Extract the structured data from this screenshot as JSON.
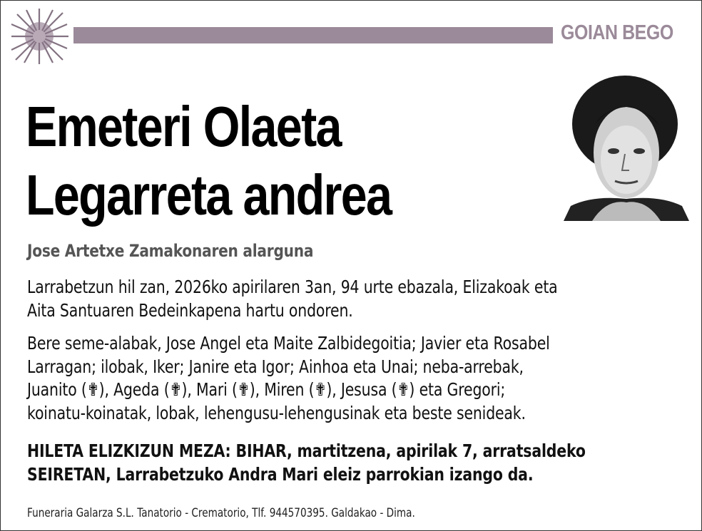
{
  "header": {
    "brand": "GOIAN BEGO",
    "accent_color": "#9b8a99",
    "logo_icon": "flower-splash-logo"
  },
  "title": {
    "line1": "Emeteri Olaeta",
    "line2": "Legarreta andrea"
  },
  "photo": {
    "icon": "portrait-photo"
  },
  "subtitle": "Jose Artetxe Zamakonaren alarguna",
  "paragraph1": [
    "Larrabetzun hil zan, 2026ko apirilaren 3an, 94 urte ebazala, Elizakoak eta",
    "Aita Santuaren Bedeinkapena hartu ondoren."
  ],
  "paragraph2": [
    "Bere seme-alabak, Jose Angel eta Maite Zalbidegoitia; Javier eta Rosabel",
    "Larragan; ilobak, Iker; Janire eta Igor; Ainhoa eta Unai; neba-arrebak,",
    "Juanito (✟), Ageda (✟), Mari (✟), Miren (✟), Jesusa (✟) eta Gregori;",
    "koinatu-koinatak, lobak, lehengusu-lehengusinak eta beste senideak."
  ],
  "paragraph3": [
    "HILETA ELIZKIZUN MEZA: BIHAR, martitzena, apirilak 7, arratsaldeko",
    "SEIRETAN, Larrabetzuko Andra Mari eleiz parrokian izango da."
  ],
  "footer": "Funeraria Galarza S.L. Tanatorio - Crematorio, Tlf. 944570395. Galdakao - Dima."
}
